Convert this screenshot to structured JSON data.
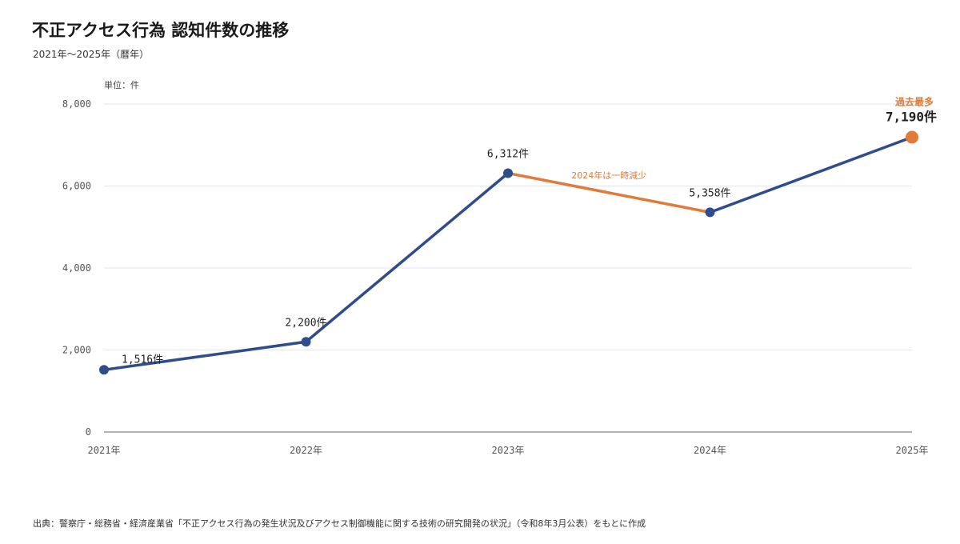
{
  "title": "不正アクセス行為 認知件数の推移",
  "subtitle": "2021年〜2025年（暦年）",
  "unit_label": "単位：件",
  "source": "出典：警察庁・総務省・経済産業省「不正アクセス行為の発生状況及びアクセス制御機能に関する技術の研究開発の状況」（令和8年3月公表）をもとに作成",
  "annotations": {
    "record_high": "過去最多",
    "dip": "2024年は一時減少"
  },
  "colors": {
    "line": "#2e4d8a",
    "highlight": "#e07b39",
    "grid": "#e3e6f0",
    "axis": "#888888"
  },
  "chart_data": {
    "type": "line",
    "x": [
      "2021年",
      "2022年",
      "2023年",
      "2024年",
      "2025年"
    ],
    "series": [
      {
        "values": [
          1516,
          2200,
          6312,
          5358,
          7190
        ],
        "point_labels": [
          "1,516件",
          "2,200件",
          "6,312件",
          "5,358件",
          "7,190件"
        ]
      }
    ],
    "y_ticks": [
      0,
      2000,
      4000,
      6000,
      8000
    ],
    "y_tick_labels": [
      "0",
      "2,000",
      "4,000",
      "6,000",
      "8,000"
    ],
    "ylim": [
      0,
      8000
    ],
    "grid": true,
    "highlight_segment": [
      "2023年",
      "2024年"
    ],
    "highlight_point": "2025年"
  }
}
